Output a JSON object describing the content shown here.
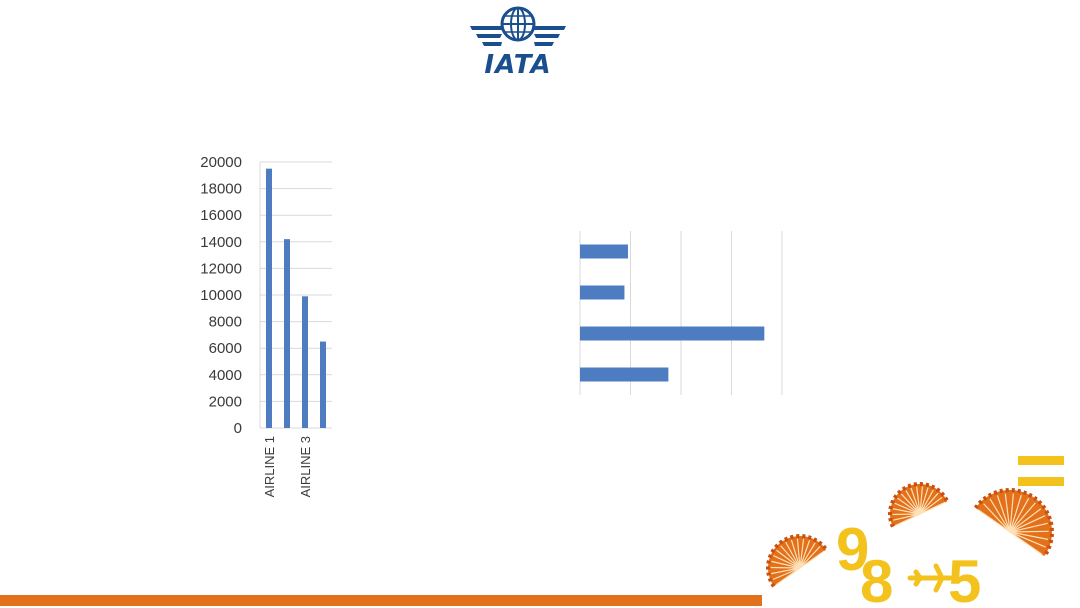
{
  "logo": {
    "text": "IATA",
    "icon": "globe-wings-icon",
    "color": "#1a4f8f"
  },
  "chart_data": [
    {
      "type": "bar",
      "orientation": "vertical",
      "categories": [
        "AIRLINE 1",
        "",
        "AIRLINE 3",
        ""
      ],
      "values": [
        19500,
        14200,
        9900,
        6500
      ],
      "ylim": [
        0,
        20000
      ],
      "yticks": [
        0,
        2000,
        4000,
        6000,
        8000,
        10000,
        12000,
        14000,
        16000,
        18000,
        20000
      ],
      "grid": true,
      "color": "#4e7cc0"
    },
    {
      "type": "bar",
      "orientation": "horizontal",
      "values": [
        0.95,
        0.88,
        3.65,
        1.75
      ],
      "xlim": [
        0,
        4
      ],
      "grid": true,
      "tick_labels_visible": false,
      "color": "#4e7cc0"
    }
  ],
  "decoration": {
    "digits": [
      "9",
      "8",
      "5"
    ],
    "airplane": "airplane-icon",
    "equals": "=",
    "number_color": "#f3c21d",
    "fan_color": "#e3701a",
    "fan_icon": "fan-icon"
  },
  "bottom_bar_color": "#e3701a"
}
